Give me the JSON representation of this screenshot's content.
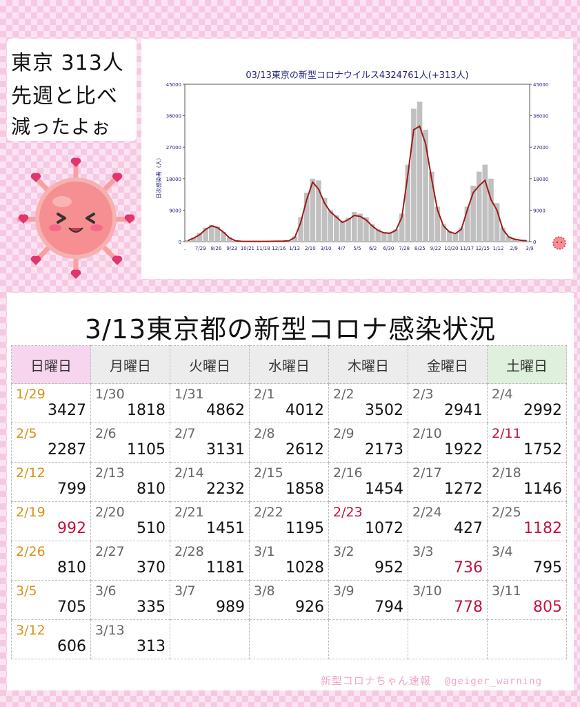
{
  "bubble": {
    "line1": "東京 313人",
    "line2": "先週と比べ",
    "line3": "減ったよぉ"
  },
  "chart_data": {
    "type": "bar",
    "title": "03/13東京の新型コロナウイルス4324761人(+313人)",
    "ylabel": "日次感染者（人）",
    "ylim": [
      0,
      45000
    ],
    "yticks": [
      0,
      9000,
      18000,
      27000,
      36000,
      45000
    ],
    "xticks": [
      ".",
      "7/29",
      "8/26",
      "9/23",
      "10/21",
      "11/18",
      "12/16",
      "1/13",
      "2/10",
      "3/10",
      "4/7",
      "5/5",
      "6/2",
      "6/30",
      "7/28",
      "8/25",
      "9/22",
      "10/20",
      "11/17",
      "12/15",
      "1/12",
      "2/9",
      "3/9"
    ],
    "series": [
      {
        "kind": "bar",
        "values": [
          400,
          1200,
          2500,
          4000,
          4800,
          4300,
          2800,
          1200,
          300,
          150,
          100,
          100,
          100,
          100,
          120,
          150,
          200,
          300,
          1500,
          7000,
          14000,
          18000,
          17500,
          12500,
          9000,
          7500,
          6000,
          6800,
          8500,
          8000,
          7000,
          5000,
          3500,
          2800,
          2600,
          3500,
          8000,
          22000,
          38000,
          40000,
          32000,
          20000,
          10000,
          5000,
          3000,
          2500,
          4000,
          10000,
          16000,
          20000,
          22000,
          18000,
          11000,
          4000,
          1500,
          800,
          500,
          300
        ]
      },
      {
        "kind": "line",
        "values": [
          300,
          1000,
          2000,
          3500,
          4500,
          4000,
          2700,
          1100,
          250,
          100,
          80,
          80,
          80,
          80,
          100,
          120,
          150,
          250,
          1200,
          5500,
          12000,
          17000,
          15000,
          11000,
          8500,
          7000,
          5500,
          6300,
          7500,
          7200,
          6200,
          4500,
          3200,
          2500,
          2400,
          3200,
          7000,
          19000,
          32000,
          33000,
          28000,
          18000,
          9000,
          4500,
          2800,
          2300,
          3500,
          9000,
          14000,
          16000,
          17500,
          12000,
          9000,
          3500,
          1300,
          700,
          400,
          250
        ]
      }
    ]
  },
  "table": {
    "title": "3/13東京都の新型コロナ感染状況",
    "headers": [
      "日曜日",
      "月曜日",
      "火曜日",
      "水曜日",
      "木曜日",
      "金曜日",
      "土曜日"
    ],
    "rows": [
      [
        {
          "d": "1/29",
          "v": "3427"
        },
        {
          "d": "1/30",
          "v": "1818"
        },
        {
          "d": "1/31",
          "v": "4862"
        },
        {
          "d": "2/1",
          "v": "4012"
        },
        {
          "d": "2/2",
          "v": "3502"
        },
        {
          "d": "2/3",
          "v": "2941"
        },
        {
          "d": "2/4",
          "v": "2992"
        }
      ],
      [
        {
          "d": "2/5",
          "v": "2287"
        },
        {
          "d": "2/6",
          "v": "1105"
        },
        {
          "d": "2/7",
          "v": "3131"
        },
        {
          "d": "2/8",
          "v": "2612"
        },
        {
          "d": "2/9",
          "v": "2173"
        },
        {
          "d": "2/10",
          "v": "1922"
        },
        {
          "d": "2/11",
          "v": "1752",
          "holiday": true
        }
      ],
      [
        {
          "d": "2/12",
          "v": "799"
        },
        {
          "d": "2/13",
          "v": "810"
        },
        {
          "d": "2/14",
          "v": "2232"
        },
        {
          "d": "2/15",
          "v": "1858"
        },
        {
          "d": "2/16",
          "v": "1454"
        },
        {
          "d": "2/17",
          "v": "1272"
        },
        {
          "d": "2/18",
          "v": "1146"
        }
      ],
      [
        {
          "d": "2/19",
          "v": "992",
          "hi": true
        },
        {
          "d": "2/20",
          "v": "510"
        },
        {
          "d": "2/21",
          "v": "1451"
        },
        {
          "d": "2/22",
          "v": "1195"
        },
        {
          "d": "2/23",
          "v": "1072",
          "holiday": true
        },
        {
          "d": "2/24",
          "v": "427"
        },
        {
          "d": "2/25",
          "v": "1182",
          "hi": true
        }
      ],
      [
        {
          "d": "2/26",
          "v": "810"
        },
        {
          "d": "2/27",
          "v": "370"
        },
        {
          "d": "2/28",
          "v": "1181"
        },
        {
          "d": "3/1",
          "v": "1028"
        },
        {
          "d": "3/2",
          "v": "952"
        },
        {
          "d": "3/3",
          "v": "736",
          "hi": true
        },
        {
          "d": "3/4",
          "v": "795"
        }
      ],
      [
        {
          "d": "3/5",
          "v": "705"
        },
        {
          "d": "3/6",
          "v": "335"
        },
        {
          "d": "3/7",
          "v": "989"
        },
        {
          "d": "3/8",
          "v": "926"
        },
        {
          "d": "3/9",
          "v": "794"
        },
        {
          "d": "3/10",
          "v": "778",
          "hi": true
        },
        {
          "d": "3/11",
          "v": "805",
          "hi": true
        }
      ],
      [
        {
          "d": "3/12",
          "v": "606"
        },
        {
          "d": "3/13",
          "v": "313"
        },
        {
          "d": "",
          "v": ""
        },
        {
          "d": "",
          "v": ""
        },
        {
          "d": "",
          "v": ""
        },
        {
          "d": "",
          "v": ""
        },
        {
          "d": "",
          "v": ""
        }
      ]
    ]
  },
  "credit": {
    "name": "新型コロナちゃん速報",
    "handle": "@geiger_warning"
  },
  "colors": {
    "bar": "#c0c0c0",
    "line": "#a01818",
    "axis_text": "#22227a",
    "sunday_date": "#d4921a",
    "highlight": "#c0143c"
  }
}
